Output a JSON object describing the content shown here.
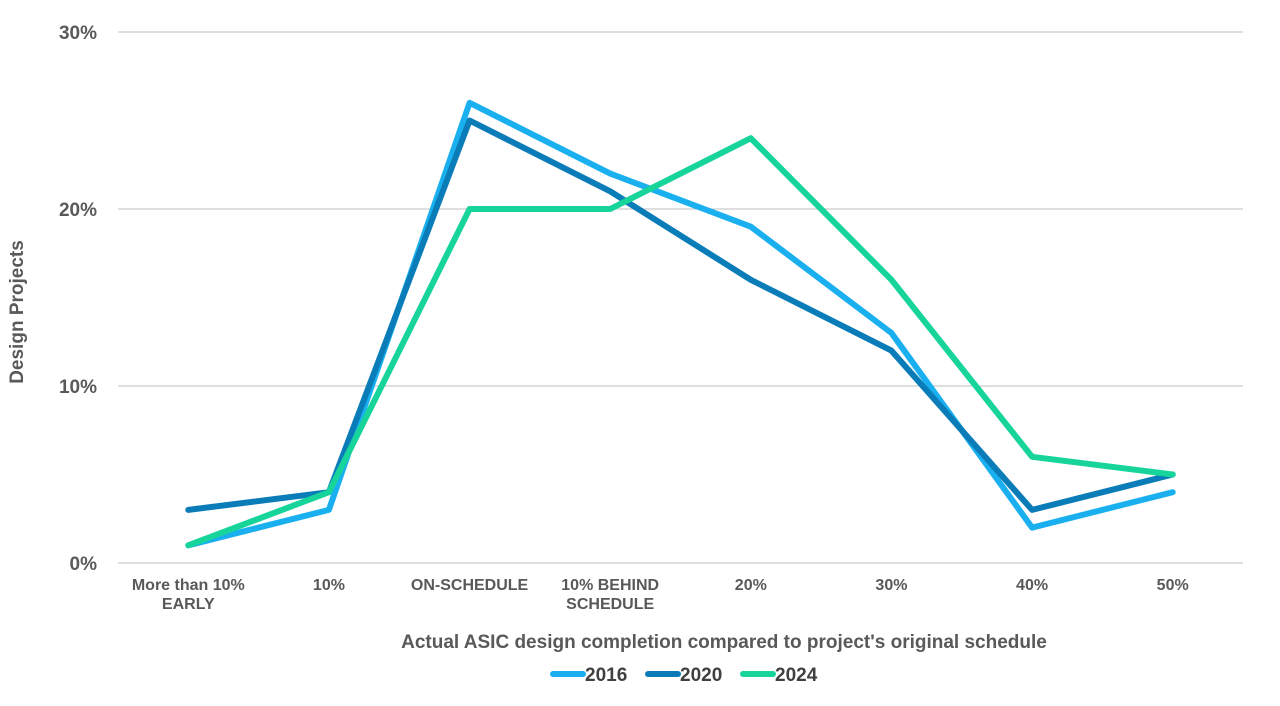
{
  "chart_data": {
    "type": "line",
    "title": "",
    "xlabel": "Actual ASIC design completion compared to project's original schedule",
    "ylabel": "Design Projects",
    "categories": [
      [
        "More than 10%",
        "EARLY"
      ],
      [
        "10%"
      ],
      [
        "ON-SCHEDULE"
      ],
      [
        "10% BEHIND",
        "SCHEDULE"
      ],
      [
        "20%"
      ],
      [
        "30%"
      ],
      [
        "40%"
      ],
      [
        "50%"
      ]
    ],
    "yticks": [
      "0%",
      "10%",
      "20%",
      "30%"
    ],
    "ylim": [
      0,
      30
    ],
    "grid": true,
    "legend_position": "bottom",
    "series": [
      {
        "name": "2016",
        "color": "#1AB0F0",
        "values": [
          1,
          3,
          26,
          22,
          19,
          13,
          2,
          4
        ]
      },
      {
        "name": "2020",
        "color": "#0A7DB8",
        "values": [
          3,
          4,
          25,
          21,
          16,
          12,
          3,
          5
        ]
      },
      {
        "name": "2024",
        "color": "#17D49A",
        "values": [
          1,
          4,
          20,
          20,
          24,
          16,
          6,
          5
        ]
      }
    ]
  }
}
